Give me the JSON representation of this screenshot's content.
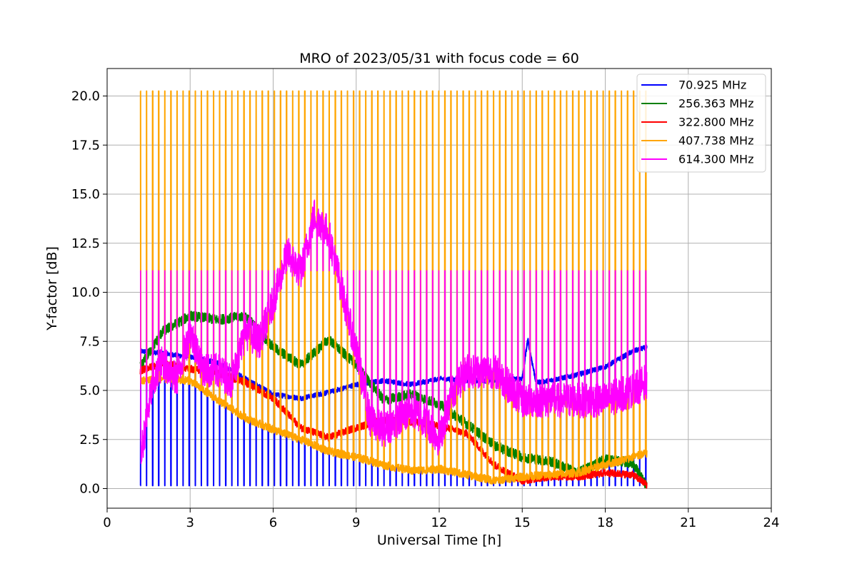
{
  "chart_data": {
    "type": "line",
    "title": "MRO of 2023/05/31 with focus code = 60",
    "xlabel": "Universal Time [h]",
    "ylabel": "Y-factor [dB]",
    "xlim": [
      0,
      24
    ],
    "ylim": [
      -1.0,
      21.4
    ],
    "xticks": [
      0,
      3,
      6,
      9,
      12,
      15,
      18,
      21,
      24
    ],
    "xtick_labels": [
      "0",
      "3",
      "6",
      "9",
      "12",
      "15",
      "18",
      "21",
      "24"
    ],
    "yticks": [
      0,
      2.5,
      5,
      7.5,
      10,
      12.5,
      15,
      17.5,
      20
    ],
    "ytick_labels": [
      "0.0",
      "2.5",
      "5.0",
      "7.5",
      "10.0",
      "12.5",
      "15.0",
      "17.5",
      "20.0"
    ],
    "grid": true,
    "legend_position": "top-right",
    "time_range": [
      1.2,
      19.5
    ],
    "spike_period": 0.22,
    "series": [
      {
        "name": " 70.925 MHz",
        "color": "#0000ff",
        "noise": 0.12,
        "spike_to": 0.15,
        "baseline": [
          [
            1.2,
            7.0
          ],
          [
            2,
            6.9
          ],
          [
            3,
            6.7
          ],
          [
            4,
            6.4
          ],
          [
            5,
            5.6
          ],
          [
            6,
            4.8
          ],
          [
            7,
            4.6
          ],
          [
            8,
            4.9
          ],
          [
            9,
            5.3
          ],
          [
            10,
            5.5
          ],
          [
            11,
            5.3
          ],
          [
            12,
            5.6
          ],
          [
            13,
            5.5
          ],
          [
            14,
            5.5
          ],
          [
            15,
            5.6
          ],
          [
            15.2,
            7.6
          ],
          [
            15.5,
            5.4
          ],
          [
            16,
            5.5
          ],
          [
            17,
            5.8
          ],
          [
            18,
            6.2
          ],
          [
            19,
            7.0
          ],
          [
            19.5,
            7.2
          ]
        ]
      },
      {
        "name": "256.363 MHz",
        "color": "#008000",
        "noise": 0.25,
        "baseline": [
          [
            1.2,
            6.2
          ],
          [
            2,
            8.0
          ],
          [
            3,
            8.8
          ],
          [
            4,
            8.6
          ],
          [
            5,
            8.8
          ],
          [
            5.5,
            8.0
          ],
          [
            6,
            7.2
          ],
          [
            7,
            6.3
          ],
          [
            8,
            7.6
          ],
          [
            9,
            6.3
          ],
          [
            10,
            4.5
          ],
          [
            11,
            4.8
          ],
          [
            12,
            4.3
          ],
          [
            13,
            3.3
          ],
          [
            14,
            2.2
          ],
          [
            15,
            1.6
          ],
          [
            16,
            1.4
          ],
          [
            17,
            0.8
          ],
          [
            18,
            1.5
          ],
          [
            19,
            1.3
          ],
          [
            19.5,
            0.1
          ]
        ]
      },
      {
        "name": "322.800 MHz",
        "color": "#ff0000",
        "noise": 0.18,
        "baseline": [
          [
            1.2,
            6.0
          ],
          [
            2,
            6.4
          ],
          [
            3,
            6.1
          ],
          [
            4,
            5.9
          ],
          [
            5,
            5.4
          ],
          [
            6,
            4.6
          ],
          [
            7,
            3.1
          ],
          [
            8,
            2.6
          ],
          [
            9,
            3.1
          ],
          [
            10,
            3.5
          ],
          [
            11,
            3.4
          ],
          [
            12,
            3.2
          ],
          [
            13,
            2.8
          ],
          [
            14,
            1.2
          ],
          [
            15,
            0.4
          ],
          [
            16,
            0.6
          ],
          [
            17,
            0.6
          ],
          [
            18,
            0.8
          ],
          [
            19,
            0.7
          ],
          [
            19.5,
            0.2
          ]
        ]
      },
      {
        "name": "407.738 MHz",
        "color": "#ffa500",
        "noise": 0.2,
        "spike_to": 20.25,
        "baseline": [
          [
            1.2,
            5.5
          ],
          [
            2,
            5.6
          ],
          [
            3,
            5.5
          ],
          [
            4,
            4.5
          ],
          [
            5,
            3.6
          ],
          [
            6,
            3.0
          ],
          [
            7,
            2.5
          ],
          [
            8,
            1.9
          ],
          [
            9,
            1.6
          ],
          [
            10,
            1.2
          ],
          [
            11,
            0.9
          ],
          [
            12,
            1.0
          ],
          [
            13,
            0.7
          ],
          [
            14,
            0.4
          ],
          [
            15,
            0.6
          ],
          [
            16,
            0.7
          ],
          [
            17,
            0.8
          ],
          [
            18,
            1.2
          ],
          [
            19,
            1.6
          ],
          [
            19.5,
            1.8
          ]
        ]
      },
      {
        "name": "614.300 MHz",
        "color": "#ff00ff",
        "noise": 0.9,
        "spike_to": 11.1,
        "baseline": [
          [
            1.2,
            1.5
          ],
          [
            1.6,
            5.0
          ],
          [
            2,
            6.5
          ],
          [
            2.5,
            5.5
          ],
          [
            3,
            8.0
          ],
          [
            3.5,
            6.0
          ],
          [
            4,
            6.0
          ],
          [
            4.5,
            5.5
          ],
          [
            5,
            8.0
          ],
          [
            5.5,
            7.5
          ],
          [
            6,
            9.5
          ],
          [
            6.5,
            12.0
          ],
          [
            7,
            11.0
          ],
          [
            7.5,
            14.0
          ],
          [
            8,
            13.0
          ],
          [
            8.5,
            10.0
          ],
          [
            9,
            7.0
          ],
          [
            9.5,
            3.5
          ],
          [
            10,
            3.0
          ],
          [
            10.5,
            3.5
          ],
          [
            11,
            4.0
          ],
          [
            11.5,
            3.5
          ],
          [
            12,
            2.5
          ],
          [
            12.5,
            5.0
          ],
          [
            13,
            6.0
          ],
          [
            14,
            6.0
          ],
          [
            15,
            4.5
          ],
          [
            16,
            4.5
          ],
          [
            17,
            4.5
          ],
          [
            18,
            4.5
          ],
          [
            19,
            5.0
          ],
          [
            19.5,
            5.5
          ]
        ]
      }
    ]
  }
}
